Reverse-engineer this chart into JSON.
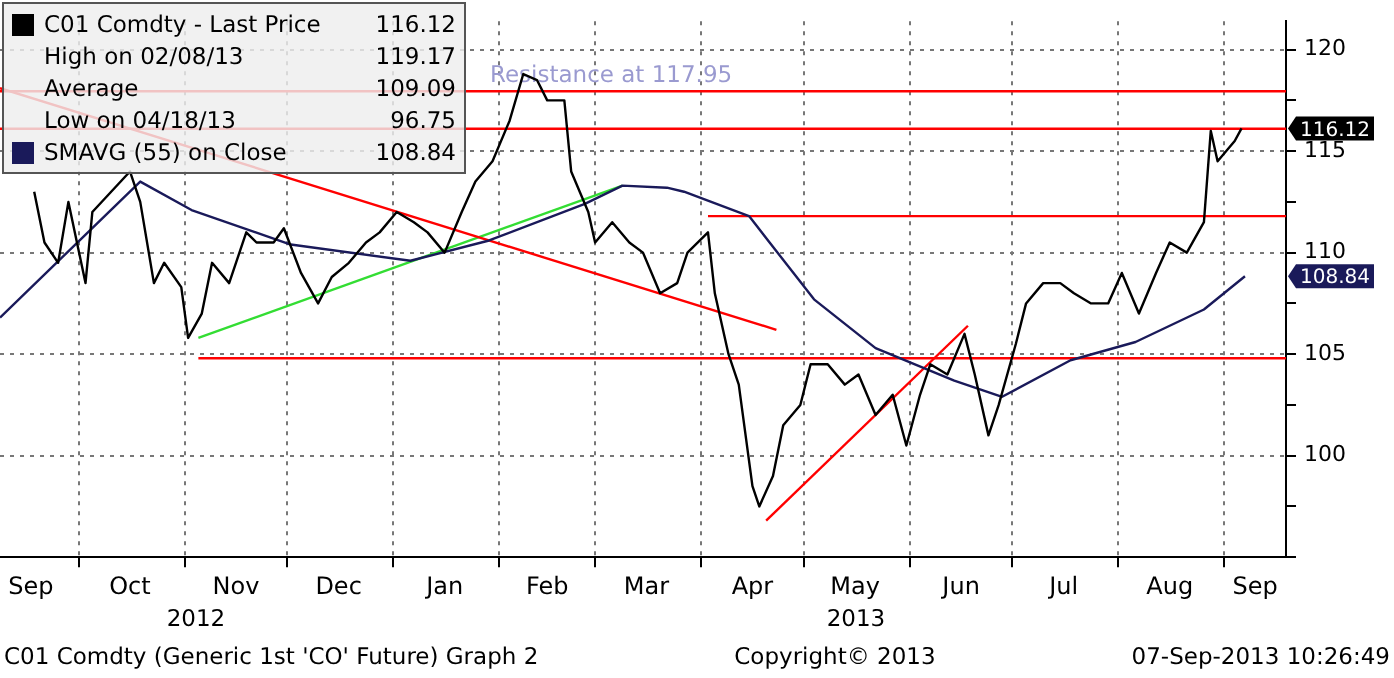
{
  "chart_data": {
    "type": "line",
    "xlim": [
      "2012-09-08",
      "2013-09-19"
    ],
    "xticks": [
      {
        "value": "2012-09-17",
        "label": "Sep"
      },
      {
        "value": "2012-10-01",
        "label": null
      },
      {
        "value": "2012-10-16",
        "label": "Oct"
      },
      {
        "value": "2012-11-01",
        "label": null
      },
      {
        "value": "2012-11-16",
        "label": "Nov"
      },
      {
        "value": "2012-12-01",
        "label": null
      },
      {
        "value": "2012-12-16",
        "label": "Dec"
      },
      {
        "value": "2013-01-01",
        "label": null
      },
      {
        "value": "2013-01-16",
        "label": "Jan"
      },
      {
        "value": "2013-02-01",
        "label": null
      },
      {
        "value": "2013-02-15",
        "label": "Feb"
      },
      {
        "value": "2013-03-01",
        "label": null
      },
      {
        "value": "2013-03-16",
        "label": "Mar"
      },
      {
        "value": "2013-04-01",
        "label": null
      },
      {
        "value": "2013-04-16",
        "label": "Apr"
      },
      {
        "value": "2013-05-01",
        "label": null
      },
      {
        "value": "2013-05-16",
        "label": "May"
      },
      {
        "value": "2013-06-01",
        "label": null
      },
      {
        "value": "2013-06-16",
        "label": "Jun"
      },
      {
        "value": "2013-07-01",
        "label": null
      },
      {
        "value": "2013-07-16",
        "label": "Jul"
      },
      {
        "value": "2013-08-01",
        "label": null
      },
      {
        "value": "2013-08-16",
        "label": "Aug"
      },
      {
        "value": "2013-09-01",
        "label": null
      },
      {
        "value": "2013-09-10",
        "label": "Sep"
      }
    ],
    "ylim": [
      95,
      121.4
    ],
    "yticks": [
      {
        "value": 95,
        "label": null
      },
      {
        "value": 97.5,
        "label": null
      },
      100,
      {
        "value": 102.5,
        "label": null
      },
      105,
      {
        "value": 107.5,
        "label": null
      },
      110,
      {
        "value": 112.5,
        "label": null
      },
      115,
      {
        "value": 117.5,
        "label": null
      },
      120
    ],
    "grid": true,
    "legend": "top left",
    "marker": "none",
    "line_style": "solid",
    "series": [
      {
        "name": "C01 Comdty - Last Price",
        "color": "#000000",
        "x": [
          "2012-09-18",
          "2012-09-21",
          "2012-09-25",
          "2012-09-28",
          "2012-10-03",
          "2012-10-05",
          "2012-10-16",
          "2012-10-19",
          "2012-10-23",
          "2012-10-26",
          "2012-10-31",
          "2012-11-02",
          "2012-11-06",
          "2012-11-09",
          "2012-11-14",
          "2012-11-19",
          "2012-11-22",
          "2012-11-27",
          "2012-11-30",
          "2012-12-05",
          "2012-12-10",
          "2012-12-14",
          "2012-12-19",
          "2012-12-24",
          "2012-12-28",
          "2013-01-02",
          "2013-01-07",
          "2013-01-11",
          "2013-01-16",
          "2013-01-21",
          "2013-01-25",
          "2013-01-30",
          "2013-02-04",
          "2013-02-08",
          "2013-02-12",
          "2013-02-15",
          "2013-02-20",
          "2013-02-22",
          "2013-02-27",
          "2013-03-01",
          "2013-03-06",
          "2013-03-11",
          "2013-03-15",
          "2013-03-20",
          "2013-03-25",
          "2013-03-28",
          "2013-04-03",
          "2013-04-05",
          "2013-04-09",
          "2013-04-12",
          "2013-04-16",
          "2013-04-18",
          "2013-04-22",
          "2013-04-25",
          "2013-04-30",
          "2013-05-03",
          "2013-05-08",
          "2013-05-13",
          "2013-05-17",
          "2013-05-22",
          "2013-05-27",
          "2013-05-31",
          "2013-06-04",
          "2013-06-07",
          "2013-06-12",
          "2013-06-17",
          "2013-06-20",
          "2013-06-24",
          "2013-06-27",
          "2013-07-02",
          "2013-07-05",
          "2013-07-10",
          "2013-07-15",
          "2013-07-19",
          "2013-07-24",
          "2013-07-29",
          "2013-08-02",
          "2013-08-07",
          "2013-08-12",
          "2013-08-16",
          "2013-08-21",
          "2013-08-26",
          "2013-08-28",
          "2013-08-30",
          "2013-09-04",
          "2013-09-06"
        ],
        "values": [
          113,
          110.5,
          109.5,
          112.5,
          108.5,
          112,
          114,
          112.5,
          108.5,
          109.5,
          108.3,
          105.8,
          107,
          109.5,
          108.5,
          111,
          110.5,
          110.5,
          111.2,
          109,
          107.5,
          108.8,
          109.5,
          110.5,
          111,
          112,
          111.5,
          111,
          110,
          112,
          113.5,
          114.5,
          116.5,
          118.8,
          118.5,
          117.5,
          117.5,
          114,
          112,
          110.5,
          111.5,
          110.5,
          110,
          108,
          108.5,
          110,
          111,
          108,
          105,
          103.5,
          98.5,
          97.5,
          99,
          101.5,
          102.5,
          104.5,
          104.5,
          103.5,
          104,
          102,
          103,
          100.5,
          103,
          104.5,
          104,
          106,
          104,
          101,
          102.5,
          105.5,
          107.5,
          108.5,
          108.5,
          108,
          107.5,
          107.5,
          109,
          107,
          109,
          110.5,
          110,
          111.5,
          116,
          114.5,
          115.5,
          116.12
        ]
      },
      {
        "name": "SMAVG (55) on Close",
        "color": "#1a1a5a",
        "x": [
          "2012-09-08",
          "2012-10-19",
          "2012-11-03",
          "2012-12-02",
          "2013-01-06",
          "2013-01-29",
          "2013-02-26",
          "2013-03-09",
          "2013-03-22",
          "2013-03-27",
          "2013-04-15",
          "2013-05-04",
          "2013-05-22",
          "2013-06-14",
          "2013-06-28",
          "2013-07-18",
          "2013-08-06",
          "2013-08-26",
          "2013-09-07"
        ],
        "values": [
          106.8,
          113.5,
          112.1,
          110.4,
          109.6,
          110.6,
          112.4,
          113.3,
          113.2,
          113,
          111.8,
          107.7,
          105.3,
          103.7,
          102.9,
          104.7,
          105.6,
          107.2,
          108.84
        ]
      },
      {
        "color": "#ff0000",
        "x": [
          "2012-09-08",
          "2013-04-23"
        ],
        "values": [
          118.1,
          106.2
        ]
      },
      {
        "color": "#33dd33",
        "x": [
          "2012-11-05",
          "2013-03-09"
        ],
        "values": [
          105.8,
          113.3
        ]
      },
      {
        "color": "#ff0000",
        "x": [
          "2013-04-20",
          "2013-06-18"
        ],
        "values": [
          96.8,
          106.4
        ]
      },
      {
        "color": "#ff0000",
        "x": [
          "2013-04-03",
          "2013-09-19"
        ],
        "values": [
          111.8,
          111.8
        ]
      },
      {
        "color": "#ff0000",
        "x": [
          "2012-11-05",
          "2013-09-19"
        ],
        "values": [
          104.8,
          104.8
        ]
      }
    ],
    "ref_lines": [
      {
        "axis": "y",
        "value": 117.95,
        "label": "Resistance at 117.95",
        "color": "#ff0000"
      },
      {
        "axis": "y",
        "value": 116.1,
        "color": "#ff0000"
      }
    ],
    "annotations": [
      "116.12",
      "108.84",
      "116.12",
      "High on 02/08/13",
      "119.17",
      "Average",
      "109.09",
      "Low on 04/18/13",
      "96.75",
      "108.84",
      "2012",
      "2013",
      "C01 Comdty (Generic 1st 'CO' Future) Graph 2",
      "Copyright© 2013",
      "07-Sep-2013 10:26:49"
    ]
  }
}
